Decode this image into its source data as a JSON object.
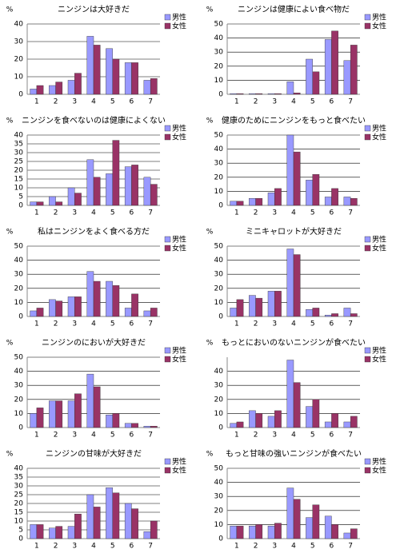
{
  "chart_data": [
    {
      "type": "bar",
      "title": "ニンジンは大好きだ",
      "y_label": "%",
      "categories": [
        "1",
        "2",
        "3",
        "4",
        "5",
        "6",
        "7"
      ],
      "ylim": [
        0,
        40
      ],
      "yticks": [
        0,
        10,
        20,
        30,
        40
      ],
      "grid": true,
      "series": [
        {
          "name": "男性",
          "color": "#9999ff",
          "values": [
            3,
            5,
            8,
            33,
            26,
            18,
            8
          ]
        },
        {
          "name": "女性",
          "color": "#993366",
          "values": [
            5,
            7,
            12,
            28,
            20,
            18,
            9
          ]
        }
      ]
    },
    {
      "type": "bar",
      "title": "ニンジンは健康によい食べ物だ",
      "y_label": "%",
      "categories": [
        "1",
        "2",
        "3",
        "4",
        "5",
        "6",
        "7"
      ],
      "ylim": [
        0,
        50
      ],
      "yticks": [
        0,
        10,
        20,
        30,
        40,
        50
      ],
      "grid": true,
      "series": [
        {
          "name": "男性",
          "color": "#9999ff",
          "values": [
            0.5,
            0.5,
            0.5,
            9,
            25,
            39,
            24
          ]
        },
        {
          "name": "女性",
          "color": "#993366",
          "values": [
            0.5,
            0.5,
            0.5,
            1,
            16,
            45,
            35
          ]
        }
      ]
    },
    {
      "type": "bar",
      "title": "ニンジンを食べないのは健康によくない",
      "y_label": "%",
      "categories": [
        "1",
        "2",
        "3",
        "4",
        "5",
        "6",
        "7"
      ],
      "ylim": [
        0,
        40
      ],
      "yticks": [
        0,
        5,
        10,
        15,
        20,
        25,
        30,
        35,
        40
      ],
      "grid": true,
      "series": [
        {
          "name": "男性",
          "color": "#9999ff",
          "values": [
            2,
            5,
            10,
            26,
            18,
            22,
            16
          ]
        },
        {
          "name": "女性",
          "color": "#993366",
          "values": [
            2,
            2,
            7,
            16,
            37,
            23,
            12
          ]
        }
      ]
    },
    {
      "type": "bar",
      "title": "健康のためにニンジンをもっと食べたい",
      "y_label": "%",
      "categories": [
        "1",
        "2",
        "3",
        "4",
        "5",
        "6",
        "7"
      ],
      "ylim": [
        0,
        50
      ],
      "yticks": [
        0,
        10,
        20,
        30,
        40,
        50
      ],
      "grid": true,
      "series": [
        {
          "name": "男性",
          "color": "#9999ff",
          "values": [
            3,
            5,
            9,
            50,
            18,
            6,
            6
          ]
        },
        {
          "name": "女性",
          "color": "#993366",
          "values": [
            3,
            5,
            12,
            38,
            22,
            12,
            5
          ]
        }
      ]
    },
    {
      "type": "bar",
      "title": "私はニンジンをよく食べる方だ",
      "y_label": "%",
      "categories": [
        "1",
        "2",
        "3",
        "4",
        "5",
        "6",
        "7"
      ],
      "ylim": [
        0,
        50
      ],
      "yticks": [
        0,
        10,
        20,
        30,
        40,
        50
      ],
      "grid": true,
      "series": [
        {
          "name": "男性",
          "color": "#9999ff",
          "values": [
            4,
            12,
            14,
            32,
            25,
            6,
            4
          ]
        },
        {
          "name": "女性",
          "color": "#993366",
          "values": [
            6,
            11,
            14,
            25,
            22,
            16,
            6
          ]
        }
      ]
    },
    {
      "type": "bar",
      "title": "ミニキャロットが大好きだ",
      "y_label": "%",
      "categories": [
        "1",
        "2",
        "3",
        "4",
        "5",
        "6",
        "7"
      ],
      "ylim": [
        0,
        50
      ],
      "yticks": [
        0,
        10,
        20,
        30,
        40,
        50
      ],
      "grid": true,
      "series": [
        {
          "name": "男性",
          "color": "#9999ff",
          "values": [
            6,
            15,
            18,
            48,
            5,
            1,
            6
          ]
        },
        {
          "name": "女性",
          "color": "#993366",
          "values": [
            12,
            13,
            18,
            44,
            6,
            2,
            2
          ]
        }
      ]
    },
    {
      "type": "bar",
      "title": "ニンジンのにおいが大好きだ",
      "y_label": "%",
      "categories": [
        "1",
        "2",
        "3",
        "4",
        "5",
        "6",
        "7"
      ],
      "ylim": [
        0,
        50
      ],
      "yticks": [
        0,
        10,
        20,
        30,
        40,
        50
      ],
      "grid": true,
      "series": [
        {
          "name": "男性",
          "color": "#9999ff",
          "values": [
            10,
            19,
            19,
            38,
            9,
            3,
            1
          ]
        },
        {
          "name": "女性",
          "color": "#993366",
          "values": [
            14,
            19,
            24,
            29,
            10,
            3,
            1
          ]
        }
      ]
    },
    {
      "type": "bar",
      "title": "もっとにおいのないニンジンが食べたい",
      "y_label": "%",
      "categories": [
        "1",
        "2",
        "3",
        "4",
        "5",
        "6",
        "7"
      ],
      "ylim": [
        0,
        50
      ],
      "yticks": [
        0,
        10,
        20,
        30,
        40
      ],
      "grid": true,
      "series": [
        {
          "name": "男性",
          "color": "#9999ff",
          "values": [
            3,
            12,
            8,
            48,
            15,
            4,
            4
          ]
        },
        {
          "name": "女性",
          "color": "#993366",
          "values": [
            4,
            10,
            12,
            32,
            20,
            10,
            8
          ]
        }
      ]
    },
    {
      "type": "bar",
      "title": "ニンジンの甘味が大好きだ",
      "y_label": "%",
      "categories": [
        "1",
        "2",
        "3",
        "4",
        "5",
        "6",
        "7"
      ],
      "ylim": [
        0,
        40
      ],
      "yticks": [
        0,
        5,
        10,
        15,
        20,
        25,
        30,
        35,
        40
      ],
      "grid": true,
      "series": [
        {
          "name": "男性",
          "color": "#9999ff",
          "values": [
            8,
            6,
            7,
            25,
            29,
            20,
            4
          ]
        },
        {
          "name": "女性",
          "color": "#993366",
          "values": [
            8,
            7,
            14,
            18,
            26,
            17,
            10
          ]
        }
      ]
    },
    {
      "type": "bar",
      "title": "もっと甘味の強いニンジンが食べたい",
      "y_label": "%",
      "categories": [
        "1",
        "2",
        "3",
        "4",
        "5",
        "6",
        "7"
      ],
      "ylim": [
        0,
        50
      ],
      "yticks": [
        0,
        10,
        20,
        30,
        40,
        50
      ],
      "grid": true,
      "series": [
        {
          "name": "男性",
          "color": "#9999ff",
          "values": [
            9,
            9,
            9,
            36,
            15,
            16,
            4
          ]
        },
        {
          "name": "女性",
          "color": "#993366",
          "values": [
            9,
            10,
            11,
            28,
            24,
            10,
            7
          ]
        }
      ]
    }
  ]
}
